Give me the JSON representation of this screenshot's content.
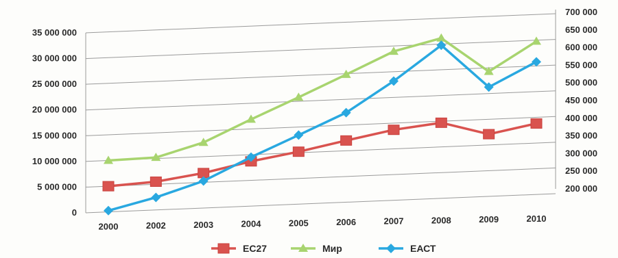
{
  "chart_data": {
    "type": "line",
    "title": "",
    "xlabel": "",
    "ylabel": "",
    "categories": [
      "2000",
      "2002",
      "2003",
      "2004",
      "2005",
      "2006",
      "2007",
      "2008",
      "2009",
      "2010"
    ],
    "y_left": {
      "range": [
        0,
        35000000
      ],
      "ticks": [
        "0",
        "5 000 000",
        "10 000 000",
        "15 000 000",
        "20 000 000",
        "25 000 000",
        "30 000 000",
        "35 000 000"
      ]
    },
    "y_right": {
      "range": [
        200000,
        700000
      ],
      "ticks": [
        "200 000",
        "250 000",
        "300 000",
        "350 000",
        "400 000",
        "450 000",
        "500 000",
        "550 000",
        "600 000",
        "650 000",
        "700 000"
      ]
    },
    "grid": true,
    "legend_position": "bottom",
    "series": [
      {
        "name": "ЕС27",
        "axis": "left",
        "color": "#d9534f",
        "marker": "square",
        "values": [
          5000000,
          5500000,
          6800000,
          8700000,
          10200000,
          12000000,
          13700000,
          14700000,
          12100000,
          13800000
        ]
      },
      {
        "name": "Мир",
        "axis": "right",
        "color": "#a8d46f",
        "marker": "triangle",
        "values": [
          332000,
          335000,
          372000,
          432000,
          489000,
          548000,
          608000,
          640000,
          540000,
          620000
        ]
      },
      {
        "name": "ЕАСТ",
        "axis": "right",
        "color": "#29a8e0",
        "marker": "diamond",
        "values": [
          190000,
          222000,
          263000,
          325000,
          382000,
          440000,
          524000,
          620000,
          496000,
          562000
        ]
      }
    ]
  }
}
